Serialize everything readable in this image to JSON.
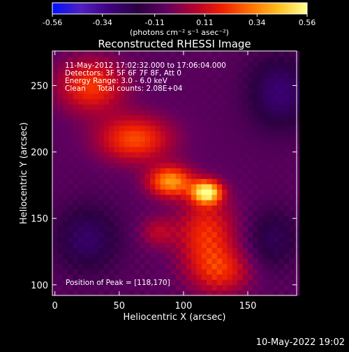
{
  "chart_data": {
    "type": "heatmap",
    "title": "Reconstructed RHESSI Image",
    "xlabel": "Heliocentric X (arcsec)",
    "ylabel": "Heliocentric Y (arcsec)",
    "xlim": [
      -2,
      188
    ],
    "ylim": [
      92,
      276
    ],
    "x_ticks": [
      0,
      50,
      100,
      150
    ],
    "y_ticks": [
      100,
      150,
      200,
      250
    ],
    "colorbar": {
      "min": -0.56,
      "max": 0.56,
      "ticks": [
        "-0.56",
        "-0.34",
        "-0.11",
        "0.11",
        "0.34",
        "0.56"
      ],
      "tick_values": [
        -0.56,
        -0.34,
        -0.11,
        0.11,
        0.34,
        0.56
      ],
      "unit_label": "(photons cm⁻² s⁻¹ asec⁻²)",
      "colors": [
        "#0010ff",
        "#5020c0",
        "#400080",
        "#2a0040",
        "#600060",
        "#b00030",
        "#f02000",
        "#ff7000",
        "#ffc020",
        "#ffff90"
      ]
    },
    "annotations": [
      "11-May-2012 17:02:32.000 to 17:06:04.000",
      "Detectors: 3F 5F 6F 7F 8F, Att 0",
      "Energy Range: 3.0 - 6.0 keV",
      "Clean     Total counts: 2.08E+04"
    ],
    "peak_label": "Position of Peak = [118,170]",
    "peak": [
      118,
      170
    ],
    "background_level": -0.08,
    "sources": [
      {
        "x": 118,
        "y": 170,
        "amp": 0.62,
        "sx": 8,
        "sy": 6
      },
      {
        "x": 90,
        "y": 178,
        "amp": 0.45,
        "sx": 12,
        "sy": 8
      },
      {
        "x": 62,
        "y": 210,
        "amp": 0.33,
        "sx": 20,
        "sy": 12
      },
      {
        "x": 28,
        "y": 250,
        "amp": 0.3,
        "sx": 18,
        "sy": 14
      },
      {
        "x": 118,
        "y": 138,
        "amp": 0.28,
        "sx": 16,
        "sy": 20
      },
      {
        "x": 130,
        "y": 110,
        "amp": 0.22,
        "sx": 16,
        "sy": 12
      },
      {
        "x": 80,
        "y": 140,
        "amp": 0.15,
        "sx": 10,
        "sy": 8
      }
    ],
    "negative_regions": [
      {
        "x": 175,
        "y": 245,
        "amp": -0.2,
        "sx": 18,
        "sy": 20
      },
      {
        "x": 25,
        "y": 135,
        "amp": -0.18,
        "sx": 18,
        "sy": 18
      },
      {
        "x": 170,
        "y": 135,
        "amp": -0.15,
        "sx": 14,
        "sy": 16
      }
    ]
  },
  "footer": {
    "timestamp": "10-May-2022 19:02"
  }
}
